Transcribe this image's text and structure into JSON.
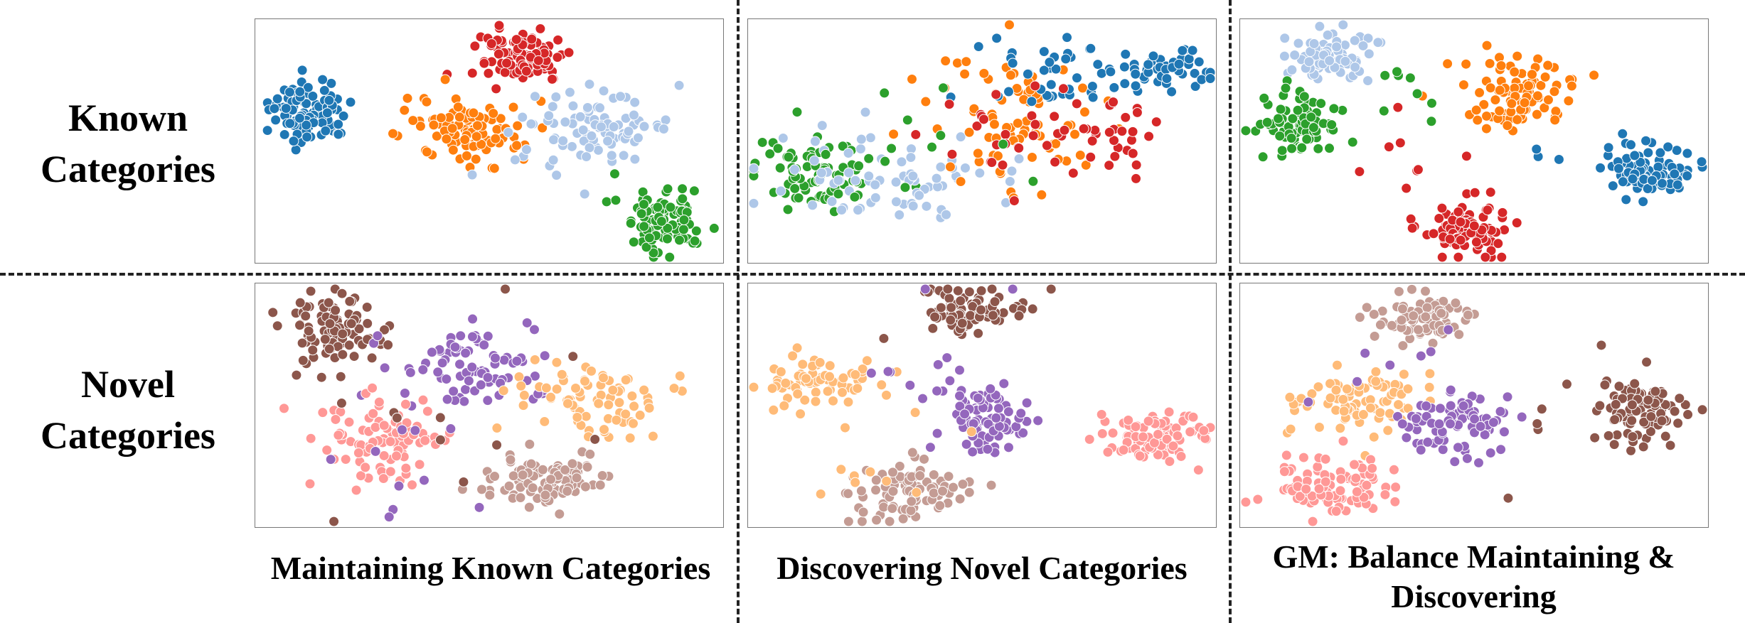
{
  "row_labels": {
    "known": [
      "Known",
      "Categories"
    ],
    "novel": [
      "Novel",
      "Categories"
    ]
  },
  "column_labels": {
    "maintaining": [
      "Maintaining Known Categories"
    ],
    "discovering": [
      "Discovering Novel Categories"
    ],
    "gm": [
      "GM: Balance Maintaining &",
      "Discovering"
    ]
  },
  "colors": {
    "known_blue": "#1f77b4",
    "known_red": "#d62728",
    "known_orange": "#ff7f0e",
    "known_lightblue": "#aec7e8",
    "known_green": "#2ca02c",
    "novel_brown": "#8c564b",
    "novel_purple": "#9467bd",
    "novel_peach": "#ffbb78",
    "novel_pink": "#ff9896",
    "novel_taupe": "#c49c94",
    "panel_border": "#777777",
    "divider": "#222222"
  },
  "icons": []
}
